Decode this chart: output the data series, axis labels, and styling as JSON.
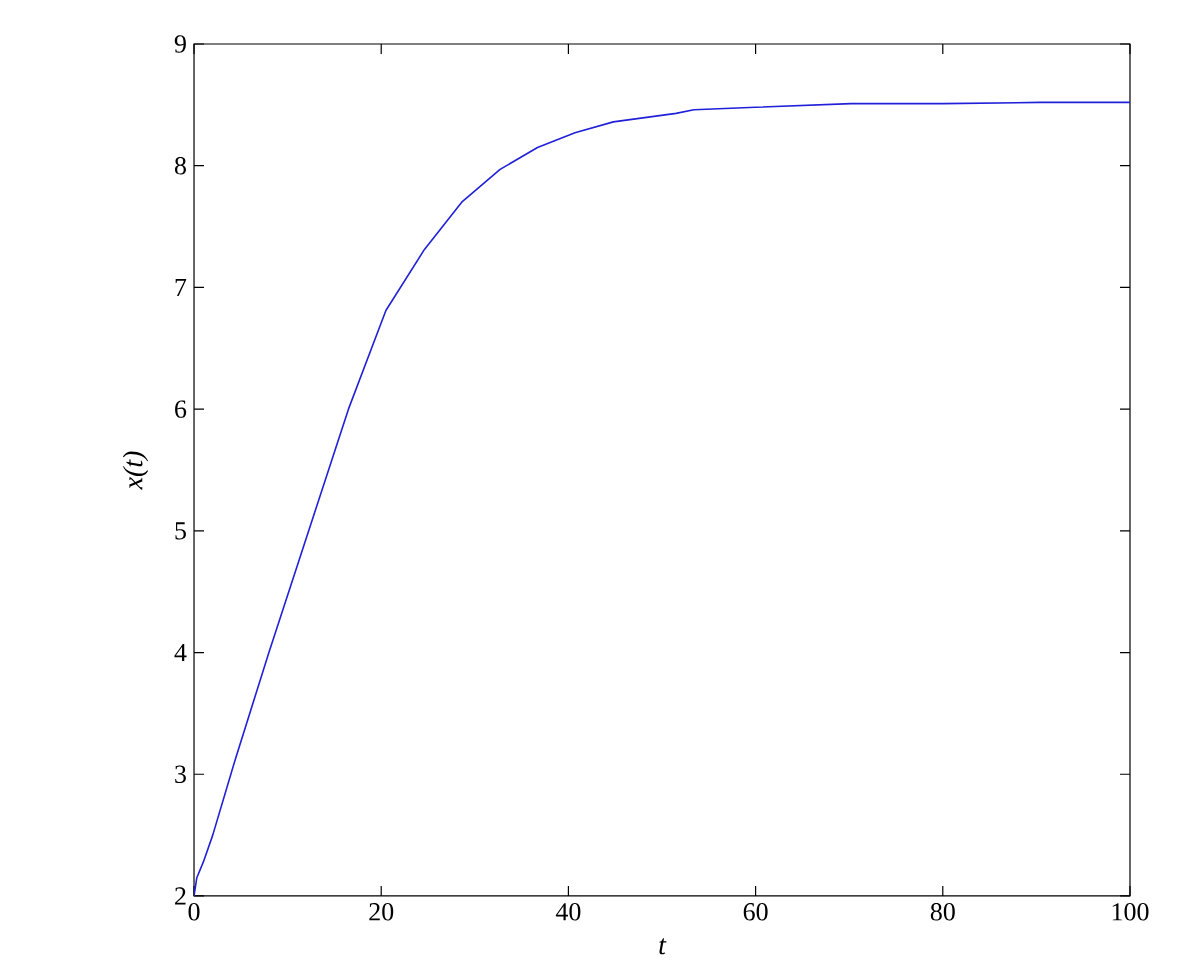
{
  "chart_data": {
    "type": "line",
    "xlabel": "t",
    "ylabel": "x(t)",
    "x": [
      0,
      0.3,
      1,
      2,
      4.4,
      8,
      11.1,
      16.5,
      20.5,
      24.6,
      28.6,
      32.7,
      36.7,
      40.7,
      44.8,
      51.5,
      53.4,
      60,
      70.2,
      80,
      90.4,
      100
    ],
    "series": [
      {
        "color": "#2020d8",
        "values": [
          2.0,
          2.15,
          2.28,
          2.5,
          3.12,
          4.0,
          4.73,
          6.0,
          6.81,
          7.31,
          7.7,
          7.97,
          8.15,
          8.27,
          8.36,
          8.43,
          8.46,
          8.48,
          8.51,
          8.51,
          8.52,
          8.52
        ]
      }
    ],
    "xlim": [
      0,
      100
    ],
    "ylim": [
      2,
      9
    ],
    "xticks": [
      0,
      20,
      40,
      60,
      80,
      100
    ],
    "yticks": [
      2,
      3,
      4,
      5,
      6,
      7,
      8,
      9
    ],
    "marker": "none",
    "line_style": "solid"
  }
}
